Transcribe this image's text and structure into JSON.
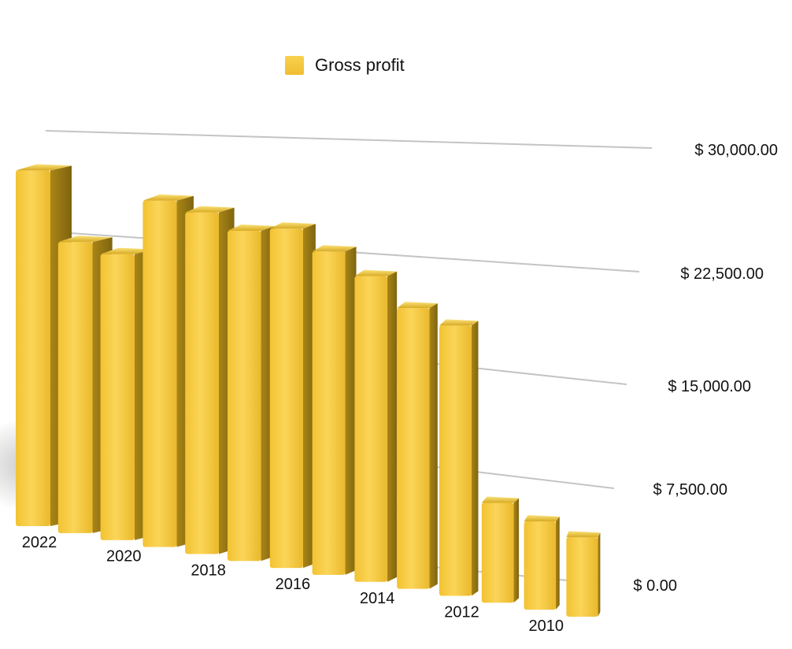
{
  "chart_data": {
    "type": "bar",
    "categories": [
      "2022",
      "2021",
      "2020",
      "2019",
      "2018",
      "2017",
      "2016",
      "2015",
      "2014",
      "2013",
      "2012",
      "2011",
      "2010",
      "2009"
    ],
    "series": [
      {
        "name": "Gross profit",
        "color": "#f5c637",
        "values": [
          29200,
          23600,
          22900,
          27400,
          26700,
          25500,
          25900,
          24400,
          22800,
          20700,
          19700,
          7200,
          6300,
          5600
        ]
      }
    ],
    "x_tick_labels": [
      "2022",
      "2020",
      "2018",
      "2016",
      "2014",
      "2012",
      "2010"
    ],
    "y_ticks": [
      "$ 0.00",
      "$ 7,500.00",
      "$ 15,000.00",
      "$ 22,500.00",
      "$ 30,000.00"
    ],
    "y_tick_values": [
      0,
      7500,
      15000,
      22500,
      30000
    ],
    "ylim": [
      0,
      30000
    ],
    "title": "",
    "xlabel": "",
    "ylabel": "",
    "grid": true,
    "legend_position": "top-center",
    "style": "3d-perspective"
  }
}
